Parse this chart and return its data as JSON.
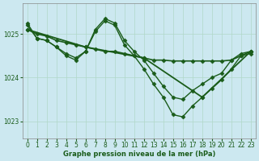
{
  "xlabel": "Graphe pression niveau de la mer (hPa)",
  "background_color": "#cce8f0",
  "grid_color": "#b0d8c8",
  "line_color": "#1a5c1a",
  "xlim": [
    -0.5,
    23.5
  ],
  "ylim": [
    1022.6,
    1025.7
  ],
  "yticks": [
    1023,
    1024,
    1025
  ],
  "xticks": [
    0,
    1,
    2,
    3,
    4,
    5,
    6,
    7,
    8,
    9,
    10,
    11,
    12,
    13,
    14,
    15,
    16,
    17,
    18,
    19,
    20,
    21,
    22,
    23
  ],
  "series": [
    {
      "x": [
        0,
        1,
        2,
        3,
        4,
        5,
        6,
        7,
        8,
        9,
        10,
        11,
        12,
        13,
        14,
        15,
        16,
        17,
        18,
        19,
        20,
        21,
        22,
        23
      ],
      "y": [
        1025.1,
        1025.0,
        1024.95,
        1024.85,
        1024.8,
        1024.75,
        1024.7,
        1024.65,
        1024.6,
        1024.6,
        1024.55,
        1024.5,
        1024.45,
        1024.4,
        1024.4,
        1024.38,
        1024.38,
        1024.38,
        1024.38,
        1024.38,
        1024.38,
        1024.4,
        1024.5,
        1024.6
      ],
      "marker": "D",
      "markersize": 2.5,
      "linewidth": 1.2
    },
    {
      "x": [
        0,
        1,
        2,
        3,
        4,
        5,
        6,
        7,
        8,
        9,
        10,
        11,
        12,
        13,
        14,
        15,
        16,
        17,
        18,
        19,
        20,
        21,
        22,
        23
      ],
      "y": [
        1025.2,
        1024.9,
        1024.85,
        1024.7,
        1024.55,
        1024.45,
        1024.6,
        1025.1,
        1025.35,
        1025.25,
        1024.85,
        1024.6,
        1024.4,
        1024.1,
        1023.8,
        1023.55,
        1023.5,
        1023.7,
        1023.85,
        1024.0,
        1024.1,
        1024.4,
        1024.55,
        1024.6
      ],
      "marker": "D",
      "markersize": 2.5,
      "linewidth": 1.0
    },
    {
      "x": [
        0,
        1,
        2,
        3,
        4,
        5,
        6,
        7,
        8,
        9,
        10,
        11,
        12,
        13,
        14,
        15,
        16,
        17,
        18,
        19,
        20,
        21,
        22,
        23
      ],
      "y": [
        1025.25,
        1024.9,
        1024.85,
        1024.7,
        1024.5,
        1024.4,
        1024.6,
        1025.05,
        1025.3,
        1025.2,
        1024.75,
        1024.5,
        1024.2,
        1023.85,
        1023.55,
        1023.15,
        1023.1,
        1023.35,
        1023.55,
        1023.75,
        1023.95,
        1024.2,
        1024.5,
        1024.55
      ],
      "marker": "D",
      "markersize": 2.5,
      "linewidth": 1.0
    },
    {
      "x": [
        0,
        6,
        12,
        18,
        23
      ],
      "y": [
        1025.1,
        1024.7,
        1024.45,
        1023.55,
        1024.6
      ],
      "marker": "D",
      "markersize": 2.5,
      "linewidth": 1.3
    }
  ]
}
